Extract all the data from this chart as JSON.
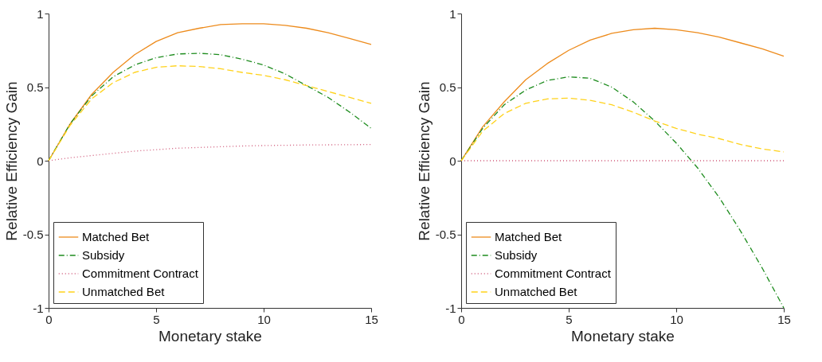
{
  "chart_data": [
    {
      "type": "line",
      "xlabel": "Monetary stake",
      "ylabel": "Relative Efficiency Gain",
      "x": [
        0,
        1,
        2,
        3,
        4,
        5,
        6,
        7,
        8,
        9,
        10,
        11,
        12,
        13,
        14,
        15
      ],
      "xlim": [
        0,
        15
      ],
      "xticks": [
        0,
        5,
        10,
        15
      ],
      "ylim": [
        -1,
        1
      ],
      "yticks": [
        -1,
        -0.5,
        0,
        0.5,
        1
      ],
      "grid": false,
      "legend": "bottom left",
      "marker": "none",
      "series": [
        {
          "name": "Matched Bet",
          "color": "#ed8b1c",
          "line_style": "solid",
          "values": [
            0,
            0.25,
            0.45,
            0.6,
            0.72,
            0.81,
            0.87,
            0.9,
            0.925,
            0.93,
            0.93,
            0.92,
            0.9,
            0.87,
            0.83,
            0.79
          ]
        },
        {
          "name": "Subsidy",
          "color": "#1e8c1e",
          "line_style": "dashdot",
          "values": [
            0,
            0.25,
            0.44,
            0.57,
            0.65,
            0.7,
            0.725,
            0.73,
            0.72,
            0.69,
            0.65,
            0.59,
            0.51,
            0.43,
            0.33,
            0.22
          ]
        },
        {
          "name": "Commitment Contract",
          "color": "#d05a7a",
          "line_style": "dotted",
          "values": [
            0,
            0.02,
            0.035,
            0.05,
            0.065,
            0.075,
            0.085,
            0.09,
            0.095,
            0.1,
            0.103,
            0.105,
            0.107,
            0.108,
            0.109,
            0.11
          ]
        },
        {
          "name": "Unmatched Bet",
          "color": "#ffd21a",
          "line_style": "dashed",
          "values": [
            0,
            0.24,
            0.42,
            0.53,
            0.6,
            0.635,
            0.645,
            0.64,
            0.625,
            0.6,
            0.58,
            0.55,
            0.51,
            0.47,
            0.43,
            0.39
          ]
        }
      ]
    },
    {
      "type": "line",
      "xlabel": "Monetary stake",
      "ylabel": "Relative Efficiency Gain",
      "x": [
        0,
        1,
        2,
        3,
        4,
        5,
        6,
        7,
        8,
        9,
        10,
        11,
        12,
        13,
        14,
        15
      ],
      "xlim": [
        0,
        15
      ],
      "xticks": [
        0,
        5,
        10,
        15
      ],
      "ylim": [
        -1,
        1
      ],
      "yticks": [
        -1,
        -0.5,
        0,
        0.5,
        1
      ],
      "grid": false,
      "legend": "bottom left",
      "marker": "none",
      "series": [
        {
          "name": "Matched Bet",
          "color": "#ed8b1c",
          "line_style": "solid",
          "values": [
            0,
            0.23,
            0.4,
            0.55,
            0.66,
            0.75,
            0.82,
            0.865,
            0.89,
            0.9,
            0.89,
            0.87,
            0.84,
            0.8,
            0.76,
            0.71
          ]
        },
        {
          "name": "Subsidy",
          "color": "#1e8c1e",
          "line_style": "dashdot",
          "values": [
            0,
            0.22,
            0.38,
            0.48,
            0.545,
            0.57,
            0.56,
            0.5,
            0.4,
            0.27,
            0.12,
            -0.05,
            -0.25,
            -0.48,
            -0.73,
            -1.0
          ]
        },
        {
          "name": "Commitment Contract",
          "color": "#d05a7a",
          "line_style": "dotted",
          "values": [
            0,
            0,
            0,
            0,
            0,
            0,
            0,
            0,
            0,
            0,
            0,
            0,
            0,
            0,
            0,
            0
          ]
        },
        {
          "name": "Unmatched Bet",
          "color": "#ffd21a",
          "line_style": "dashed",
          "values": [
            0,
            0.2,
            0.32,
            0.39,
            0.42,
            0.425,
            0.41,
            0.38,
            0.33,
            0.27,
            0.22,
            0.18,
            0.15,
            0.11,
            0.08,
            0.06
          ]
        }
      ]
    }
  ]
}
